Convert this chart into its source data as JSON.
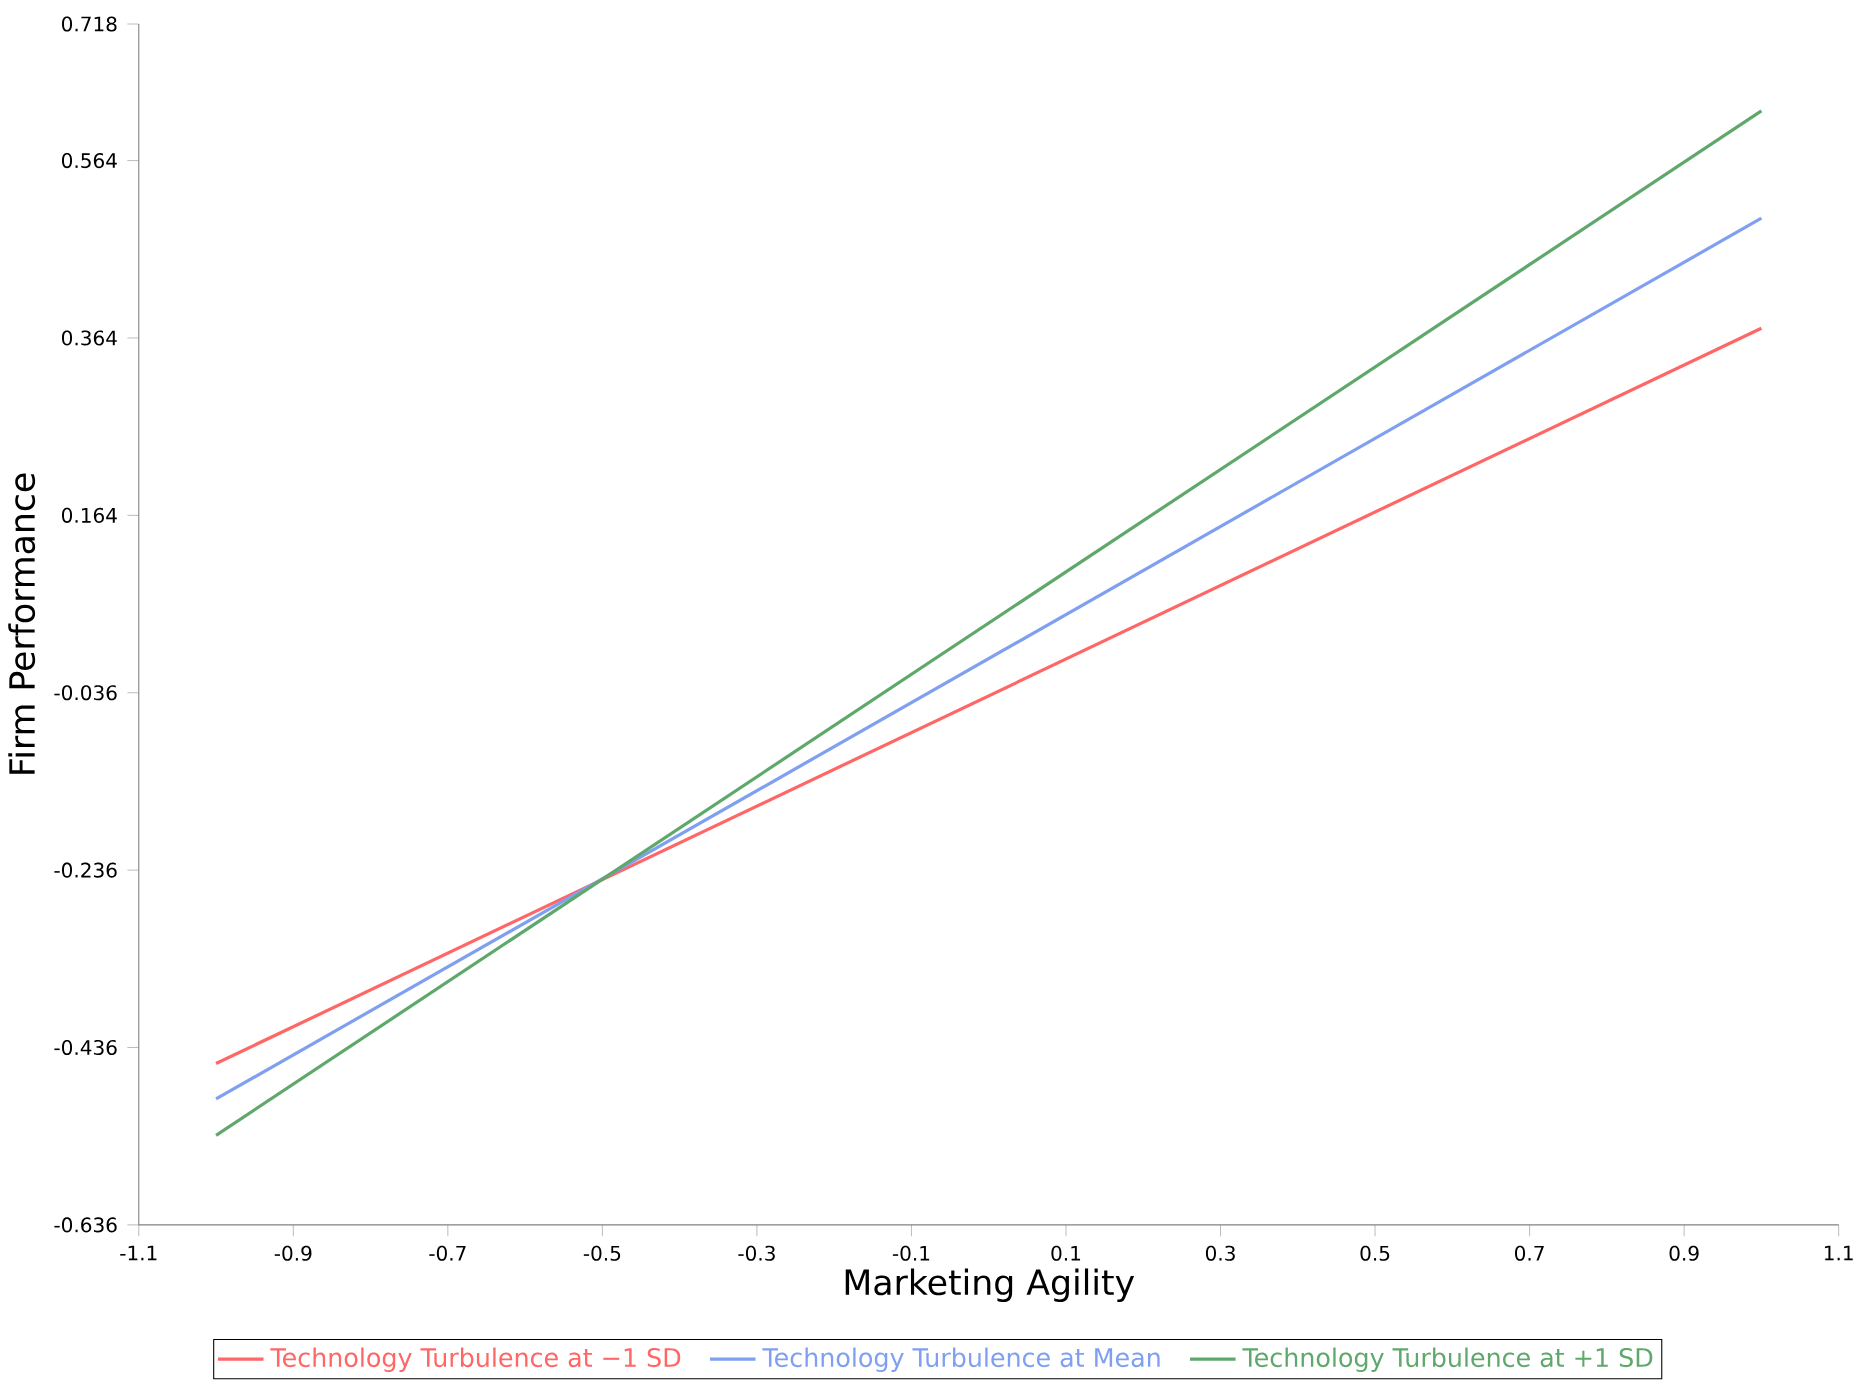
{
  "chart_data": {
    "type": "line",
    "xlabel": "Marketing Agility",
    "ylabel": "Firm Performance",
    "x": [
      -1,
      1
    ],
    "series": [
      {
        "name": "Technology Turbulence at −1 SD",
        "color": "#ff6666",
        "values": [
          -0.454,
          0.375
        ]
      },
      {
        "name": "Technology Turbulence at Mean",
        "color": "#7f9ff0",
        "values": [
          -0.494,
          0.499
        ]
      },
      {
        "name": "Technology Turbulence at +1 SD",
        "color": "#5fa86c",
        "values": [
          -0.535,
          0.62
        ]
      }
    ],
    "xlim": [
      -1.1,
      1.1
    ],
    "ylim": [
      -0.636,
      0.718
    ],
    "xticks": [
      -1.1,
      -0.9,
      -0.7,
      -0.5,
      -0.3,
      -0.1,
      0.1,
      0.3,
      0.5,
      0.7,
      0.9,
      1.1
    ],
    "yticks": [
      -0.636,
      -0.436,
      -0.236,
      -0.036,
      0.164,
      0.364,
      0.564,
      0.718
    ],
    "grid": false,
    "legend": "bottom",
    "marker": "none",
    "line_style": "solid"
  }
}
